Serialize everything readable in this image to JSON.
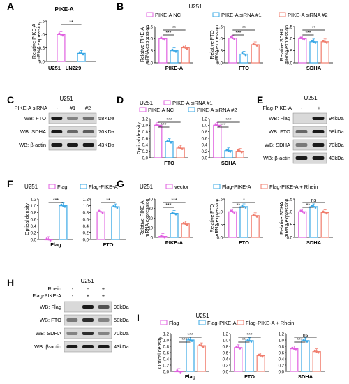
{
  "colors": {
    "magenta": "#e060e0",
    "blue": "#3aa8e6",
    "salmon": "#f07e6e",
    "band": "#1a1a1a",
    "blot_bg": "#d9d9d9"
  },
  "panels": {
    "A": {
      "letter": "A",
      "title": "PIKE-A",
      "ylabel": [
        "Relative PIKE-A",
        "mRNA expression"
      ],
      "sig": [
        "**"
      ]
    },
    "B": {
      "letter": "B",
      "cell": "U251",
      "legend": [
        "PIKE-A NC",
        "PIKE-A siRNA #1",
        "PIKE-A siRNA #2"
      ],
      "xlabels": [
        "PIKE-A",
        "FTO",
        "SDHA"
      ],
      "ylabels": [
        [
          "Relative PIKE-A",
          "mRNA expression"
        ],
        [
          "Relative FTO",
          "mRNA expression"
        ],
        [
          "Relative SDHA",
          "mRNA expression"
        ]
      ],
      "sig": [
        [
          "***",
          "**"
        ],
        [
          "***",
          "**"
        ],
        [
          "***",
          "**"
        ]
      ]
    },
    "C": {
      "letter": "C",
      "cell": "U251",
      "row_label": "PIKE-A siRNA",
      "lanes": [
        "-",
        "#1",
        "#2"
      ],
      "blots": [
        "WB: FTO",
        "WB: SDHA",
        "WB: β-actin"
      ],
      "sizes": [
        "58KDa",
        "70KDa",
        "43KDa"
      ]
    },
    "D": {
      "letter": "D",
      "cell": "U251",
      "legend": [
        "PIKE-A NC",
        "PIKE-A siRNA #1",
        "PIKE-A siRNA #2"
      ],
      "ylabel": "Optical density",
      "xlabels": [
        "FTO",
        "SDHA"
      ],
      "sig": [
        [
          "***",
          "***"
        ],
        [
          "***",
          "***"
        ]
      ]
    },
    "E": {
      "letter": "E",
      "cell": "U251",
      "row_label": "Flag-PIKE-A",
      "lanes": [
        "-",
        "+"
      ],
      "blots": [
        "WB: Flag",
        "WB: FTO",
        "WB: SDHA",
        "WB: β-actin"
      ],
      "sizes": [
        "94kDa",
        "58kDa",
        "70kDa",
        "43kDa"
      ]
    },
    "F": {
      "letter": "F",
      "cell": "U251",
      "legend": [
        "Flag",
        "Flag-PIKE-A"
      ],
      "ylabel": "Optical density",
      "xlabels": [
        "Flag",
        "FTO"
      ],
      "sig": [
        "***",
        "**"
      ]
    },
    "G": {
      "letter": "G",
      "cell": "U251",
      "legend": [
        "vector",
        "Flag-PIKE-A",
        "Flag-PIKE-A + Rhein"
      ],
      "xlabels": [
        "PIKE-A",
        "FTO",
        "SDHA"
      ],
      "ylabels": [
        [
          "Relative PIKE-A",
          "mRNA expression"
        ],
        [
          "Relative FTO",
          "mRNA expression"
        ],
        [
          "Relative SDHA",
          "mRNA expression"
        ]
      ],
      "sig": [
        [
          "***",
          "***"
        ],
        [
          "**",
          "*"
        ],
        [
          "**",
          "ns"
        ]
      ]
    },
    "H": {
      "letter": "H",
      "cell": "U251",
      "row_labels": [
        "Rhein",
        "Flag-PIKE-A"
      ],
      "lanes_rhein": [
        "-",
        "-",
        "+"
      ],
      "lanes_flag": [
        "-",
        "+",
        "+"
      ],
      "blots": [
        "WB: Flag",
        "WB: FTO",
        "WB: SDHA",
        "WB: β-actin"
      ],
      "sizes": [
        "90kDa",
        "58kDa",
        "70kDa",
        "43kDa"
      ]
    },
    "I": {
      "letter": "I",
      "cell": "U251",
      "legend": [
        "Flag",
        "Flag-PIKE-A",
        "Flag-PIKE-A + Rhein"
      ],
      "ylabel": "Optical density",
      "xlabels": [
        "Flag",
        "FTO",
        "SDHA"
      ],
      "sig": [
        [
          "***",
          "***"
        ],
        [
          "**",
          "***"
        ],
        [
          "***",
          "ns"
        ]
      ]
    }
  },
  "chart_data": [
    {
      "panel": "A",
      "type": "bar",
      "categories": [
        "U251",
        "LN229"
      ],
      "values": [
        1.0,
        0.3
      ],
      "ylim": [
        0,
        1.5
      ],
      "yticks": [
        "0.0",
        "0.5",
        "1.0",
        "1.5"
      ],
      "ylabel": "Relative PIKE-A mRNA expression",
      "title": "PIKE-A"
    },
    {
      "panel": "B",
      "type": "bar",
      "subpanels": [
        {
          "xlabel": "PIKE-A",
          "ylim": [
            0,
            1.5
          ],
          "yticks": [
            "0.0",
            "0.5",
            "1.0",
            "1.5"
          ],
          "values": [
            1.0,
            0.5,
            0.62
          ]
        },
        {
          "xlabel": "FTO",
          "ylim": [
            0,
            1.5
          ],
          "yticks": [
            "0.0",
            "0.5",
            "1.0",
            "1.5"
          ],
          "values": [
            1.02,
            0.36,
            0.75
          ]
        },
        {
          "xlabel": "SDHA",
          "ylim": [
            0,
            1.5
          ],
          "yticks": [
            "0.0",
            "0.5",
            "1.0",
            "1.5"
          ],
          "values": [
            1.0,
            0.87,
            0.87
          ]
        }
      ],
      "series": [
        "PIKE-A NC",
        "PIKE-A siRNA #1",
        "PIKE-A siRNA #2"
      ]
    },
    {
      "panel": "D",
      "type": "bar",
      "subpanels": [
        {
          "xlabel": "FTO",
          "ylim": [
            0,
            1.2
          ],
          "yticks": [
            "0.0",
            "0.2",
            "0.4",
            "0.6",
            "0.8",
            "1.0",
            "1.2"
          ],
          "values": [
            1.0,
            0.5,
            0.3
          ]
        },
        {
          "xlabel": "SDHA",
          "ylim": [
            0,
            1.2
          ],
          "yticks": [
            "0.0",
            "0.2",
            "0.4",
            "0.6",
            "0.8",
            "1.0",
            "1.2"
          ],
          "values": [
            1.0,
            0.22,
            0.2
          ]
        }
      ],
      "series": [
        "PIKE-A NC",
        "PIKE-A siRNA #1",
        "PIKE-A siRNA #2"
      ]
    },
    {
      "panel": "F",
      "type": "bar",
      "subpanels": [
        {
          "xlabel": "Flag",
          "ylim": [
            0,
            1.2
          ],
          "yticks": [
            "0.0",
            "0.2",
            "0.4",
            "0.6",
            "0.8",
            "1.0",
            "1.2"
          ],
          "values": [
            0.0,
            1.0
          ]
        },
        {
          "xlabel": "FTO",
          "ylim": [
            0,
            1.2
          ],
          "yticks": [
            "0.0",
            "0.2",
            "0.4",
            "0.6",
            "0.8",
            "1.0",
            "1.2"
          ],
          "values": [
            0.82,
            0.97
          ]
        }
      ],
      "series": [
        "Flag",
        "Flag-PIKE-A"
      ]
    },
    {
      "panel": "G",
      "type": "bar",
      "subpanels": [
        {
          "xlabel": "PIKE-A",
          "ylim": [
            0,
            40
          ],
          "yticks": [
            "0",
            "10",
            "20",
            "30",
            "40"
          ],
          "values": [
            1.0,
            25.0,
            14.0
          ]
        },
        {
          "xlabel": "FTO",
          "ylim": [
            0,
            1.5
          ],
          "yticks": [
            "0.0",
            "0.5",
            "1.0",
            "1.5"
          ],
          "values": [
            1.0,
            1.2,
            0.85
          ]
        },
        {
          "xlabel": "SDHA",
          "ylim": [
            0,
            1.5
          ],
          "yticks": [
            "0.0",
            "0.5",
            "1.0",
            "1.5"
          ],
          "values": [
            1.0,
            1.2,
            0.97
          ]
        }
      ],
      "series": [
        "vector",
        "Flag-PIKE-A",
        "Flag-PIKE-A + Rhein"
      ]
    },
    {
      "panel": "I",
      "type": "bar",
      "subpanels": [
        {
          "xlabel": "Flag",
          "ylim": [
            0,
            1.2
          ],
          "yticks": [
            "0.0",
            "0.2",
            "0.4",
            "0.6",
            "0.8",
            "1.0",
            "1.2"
          ],
          "values": [
            0.0,
            1.0,
            0.82
          ]
        },
        {
          "xlabel": "FTO",
          "ylim": [
            0,
            1.2
          ],
          "yticks": [
            "0.0",
            "0.2",
            "0.4",
            "0.6",
            "0.8",
            "1.0",
            "1.2"
          ],
          "values": [
            0.76,
            0.98,
            0.5
          ]
        },
        {
          "xlabel": "SDHA",
          "ylim": [
            0,
            1.2
          ],
          "yticks": [
            "0.0",
            "0.2",
            "0.4",
            "0.6",
            "0.8",
            "1.0",
            "1.2"
          ],
          "values": [
            0.72,
            0.98,
            0.63
          ]
        }
      ],
      "series": [
        "Flag",
        "Flag-PIKE-A",
        "Flag-PIKE-A + Rhein"
      ]
    }
  ]
}
